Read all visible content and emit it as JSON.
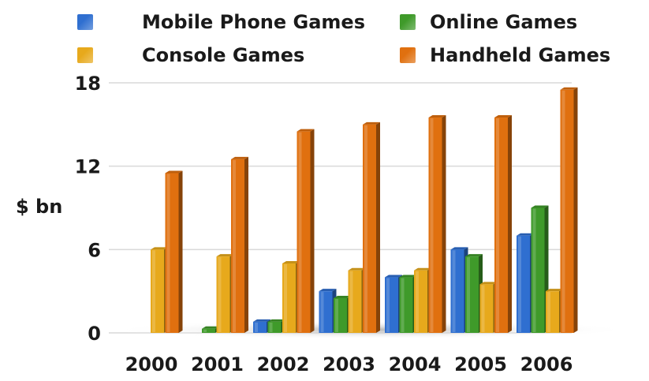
{
  "chart_data": {
    "type": "bar",
    "title": "",
    "xlabel": "",
    "ylabel": "$ bn",
    "ylim": [
      0,
      18
    ],
    "yticks": [
      0,
      6,
      12,
      18
    ],
    "grid": true,
    "legend_position": "top",
    "categories": [
      "2000",
      "2001",
      "2002",
      "2003",
      "2004",
      "2005",
      "2006"
    ],
    "series": [
      {
        "name": "Mobile Phone Games",
        "color": "#2f6fd0",
        "values": [
          0,
          0,
          0.8,
          3,
          4,
          6,
          7
        ]
      },
      {
        "name": "Online Games",
        "color": "#3f9a2a",
        "values": [
          0,
          0.3,
          0.8,
          2.5,
          4,
          5.5,
          9
        ]
      },
      {
        "name": "Console Games",
        "color": "#e7a91c",
        "values": [
          6,
          5.5,
          5,
          4.5,
          4.5,
          3.5,
          3
        ]
      },
      {
        "name": "Handheld Games",
        "color": "#e0700f",
        "values": [
          11.5,
          12.5,
          14.5,
          15,
          15.5,
          15.5,
          17.5
        ]
      }
    ]
  }
}
